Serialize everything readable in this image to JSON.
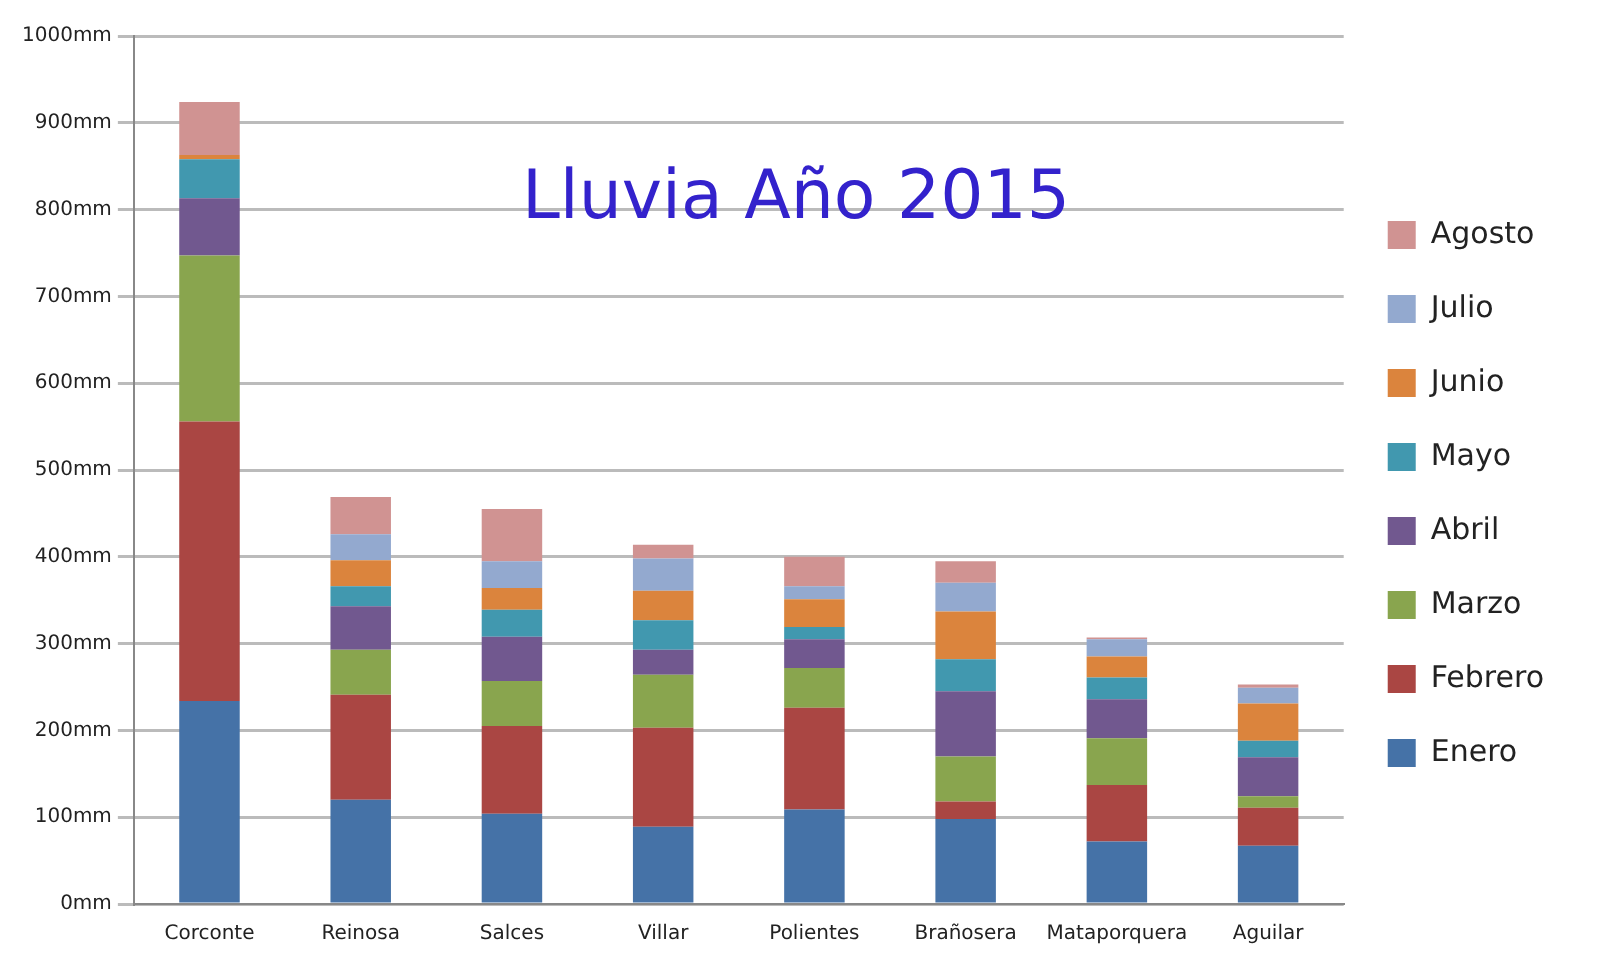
{
  "chart_data": {
    "type": "bar",
    "title": "Lluvia Año 2015",
    "stacked": true,
    "legend": "right",
    "grid": "y",
    "categories": [
      "Corconte",
      "Reinosa",
      "Salces",
      "Villar",
      "Polientes",
      "Brañosera",
      "Mataporquera",
      "Aguilar"
    ],
    "ylim": [
      0,
      1000
    ],
    "yticks": [
      {
        "value": 0,
        "label": "0mm"
      },
      {
        "value": 100,
        "label": "100mm"
      },
      {
        "value": 200,
        "label": "200mm"
      },
      {
        "value": 300,
        "label": "300mm"
      },
      {
        "value": 400,
        "label": "400mm"
      },
      {
        "value": 500,
        "label": "500mm"
      },
      {
        "value": 600,
        "label": "600mm"
      },
      {
        "value": 700,
        "label": "700mm"
      },
      {
        "value": 800,
        "label": "800mm"
      },
      {
        "value": 900,
        "label": "900mm"
      },
      {
        "value": 1000,
        "label": "1000mm"
      }
    ],
    "series": [
      {
        "name": "Enero",
        "color": "#4572a7",
        "values": [
          234,
          120,
          104,
          89,
          109,
          98,
          72,
          67
        ]
      },
      {
        "name": "Febrero",
        "color": "#aa4643",
        "values": [
          322,
          121,
          101,
          114,
          117,
          20,
          65,
          44
        ]
      },
      {
        "name": "Marzo",
        "color": "#89a54e",
        "values": [
          191,
          52,
          52,
          61,
          46,
          52,
          54,
          13
        ]
      },
      {
        "name": "Abril",
        "color": "#71588f",
        "values": [
          66,
          50,
          51,
          29,
          33,
          75,
          45,
          45
        ]
      },
      {
        "name": "Mayo",
        "color": "#4198af",
        "values": [
          45,
          23,
          31,
          34,
          14,
          37,
          25,
          19
        ]
      },
      {
        "name": "Junio",
        "color": "#db843d",
        "values": [
          5,
          30,
          25,
          34,
          32,
          55,
          24,
          43
        ]
      },
      {
        "name": "Julio",
        "color": "#93a9cf",
        "values": [
          0,
          30,
          31,
          37,
          15,
          33,
          20,
          18
        ]
      },
      {
        "name": "Agosto",
        "color": "#d09392",
        "values": [
          61,
          43,
          60,
          16,
          34,
          25,
          2,
          4
        ]
      }
    ]
  }
}
